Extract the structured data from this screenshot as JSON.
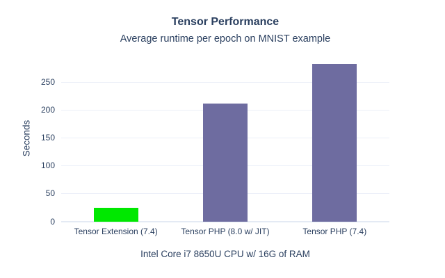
{
  "chart_data": {
    "type": "bar",
    "title": "Tensor Performance",
    "subtitle": "Average runtime per epoch on MNIST example",
    "categories": [
      "Tensor Extension (7.4)",
      "Tensor PHP (8.0 w/ JIT)",
      "Tensor PHP (7.4)"
    ],
    "values": [
      24,
      212,
      283
    ],
    "bar_colors": [
      "#00e800",
      "#6e6ca0",
      "#6e6ca0"
    ],
    "xlabel": "Intel Core i7 8650U CPU w/ 16G of RAM",
    "ylabel": "Seconds",
    "ylim": [
      0,
      298
    ],
    "yticks": [
      0,
      50,
      100,
      150,
      200,
      250
    ],
    "grid": true,
    "legend": "none",
    "text_color": "#2a3f5f",
    "gridline_color": "#ebeff8",
    "zeroline_color": "#e4eaf4",
    "background_color": "#ffffff"
  }
}
